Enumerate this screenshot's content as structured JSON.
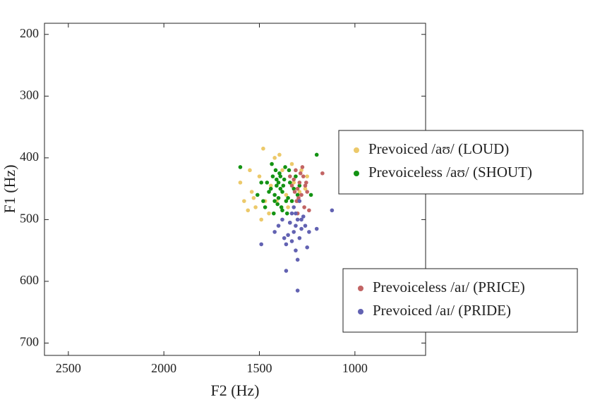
{
  "chart_data": {
    "type": "scatter",
    "x_label": "F2 (Hz)",
    "y_label": "F1 (Hz)",
    "xlim": [
      2625,
      630
    ],
    "ylim": [
      182,
      720
    ],
    "xticks": [
      2500,
      2000,
      1500,
      1000
    ],
    "yticks": [
      200,
      300,
      400,
      500,
      600,
      700
    ],
    "x_reversed": true,
    "y_reversed": true,
    "series": [
      {
        "name": "Prevoiced /aʊ/ (LOUD)",
        "color": "#ecc96a",
        "legend": "center right",
        "x": [
          1480,
          1550,
          1600,
          1580,
          1520,
          1450,
          1350,
          1300,
          1260,
          1280,
          1330,
          1420,
          1500,
          1540,
          1470,
          1380,
          1440,
          1360,
          1410,
          1320,
          1560,
          1250,
          1490,
          1395,
          1530,
          1290
        ],
        "y": [
          385,
          420,
          440,
          470,
          480,
          490,
          480,
          470,
          450,
          420,
          410,
          400,
          430,
          455,
          470,
          420,
          445,
          460,
          470,
          440,
          485,
          430,
          500,
          395,
          465,
          455
        ]
      },
      {
        "name": "Prevoiceless /aʊ/ (SHOUT)",
        "color": "#139313",
        "legend": "center right",
        "x": [
          1600,
          1200,
          1230,
          1390,
          1400,
          1380,
          1410,
          1420,
          1370,
          1360,
          1430,
          1350,
          1440,
          1395,
          1385,
          1405,
          1415,
          1375,
          1340,
          1450,
          1330,
          1460,
          1320,
          1470,
          1310,
          1480,
          1300,
          1355,
          1425,
          1365,
          1435,
          1345,
          1490,
          1510,
          1290,
          1400,
          1390,
          1410,
          1380,
          1420
        ],
        "y": [
          415,
          395,
          460,
          450,
          440,
          455,
          445,
          460,
          435,
          470,
          430,
          465,
          450,
          425,
          480,
          475,
          420,
          445,
          440,
          455,
          470,
          440,
          450,
          480,
          430,
          470,
          460,
          490,
          490,
          415,
          410,
          420,
          440,
          460,
          445,
          465,
          430,
          435,
          485,
          470
        ]
      },
      {
        "name": "Prevoiceless /aɪ/ (PRICE)",
        "color": "#c26464",
        "legend": "lower right",
        "x": [
          1290,
          1270,
          1300,
          1310,
          1280,
          1260,
          1320,
          1250,
          1295,
          1275,
          1305,
          1330,
          1285,
          1265,
          1170,
          1240,
          1315,
          1255,
          1300,
          1340
        ],
        "y": [
          440,
          430,
          450,
          420,
          460,
          445,
          435,
          455,
          465,
          415,
          470,
          445,
          425,
          480,
          425,
          485,
          455,
          440,
          490,
          430
        ]
      },
      {
        "name": "Prevoiced /aɪ/ (PRIDE)",
        "color": "#6262b2",
        "legend": "lower right",
        "x": [
          1310,
          1300,
          1320,
          1330,
          1290,
          1340,
          1280,
          1350,
          1270,
          1360,
          1260,
          1300,
          1310,
          1320,
          1380,
          1240,
          1300,
          1360,
          1120,
          1490,
          1200,
          1330,
          1290,
          1420,
          1400,
          1250,
          1310,
          1340,
          1370,
          1280
        ],
        "y": [
          510,
          500,
          520,
          490,
          530,
          505,
          515,
          525,
          495,
          540,
          510,
          615,
          550,
          480,
          500,
          520,
          565,
          583,
          485,
          540,
          515,
          535,
          470,
          520,
          510,
          545,
          490,
          505,
          530,
          500
        ]
      }
    ]
  }
}
